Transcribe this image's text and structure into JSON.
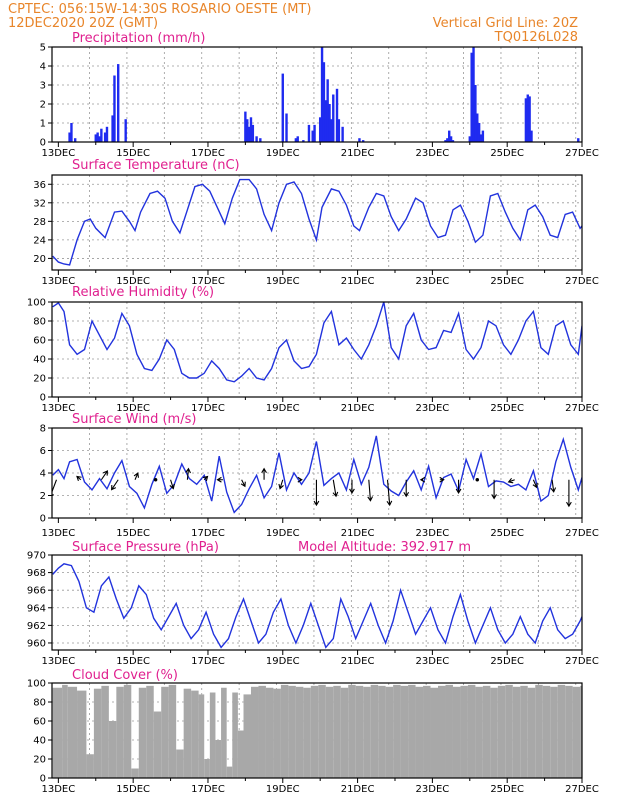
{
  "header": {
    "line1": "CPTEC:   056:15W-14:30S   ROSARIO OESTE (MT)",
    "line2_left": "12DEC2020 20Z (GMT)",
    "line2_right": "Vertical Grid Line: 20Z",
    "line3_right": "TQ0126L028"
  },
  "colors": {
    "header": "#e8852a",
    "title": "#e0208f",
    "series": "#2233dd",
    "bar": "#1f2bf0",
    "cloud": "#a8a8a8",
    "arrow": "#000000"
  },
  "x_tick_labels": [
    "13DEC",
    "15DEC",
    "17DEC",
    "19DEC",
    "21DEC",
    "23DEC",
    "25DEC",
    "27DEC"
  ],
  "chart_data": [
    {
      "type": "bar",
      "title": "Precipitation (mm/h)",
      "x_range": [
        12.83,
        27.0
      ],
      "ylim": [
        0,
        5
      ],
      "yticks": [
        0,
        1,
        2,
        3,
        4,
        5
      ],
      "grid": true,
      "x": [
        13.3,
        13.35,
        13.45,
        14.0,
        14.05,
        14.1,
        14.15,
        14.25,
        14.3,
        14.45,
        14.5,
        14.6,
        14.8,
        18.0,
        18.05,
        18.1,
        18.15,
        18.2,
        18.3,
        18.4,
        19.0,
        19.1,
        19.35,
        19.4,
        19.55,
        19.7,
        19.8,
        19.85,
        20.0,
        20.05,
        20.1,
        20.15,
        20.2,
        20.25,
        20.3,
        20.35,
        20.45,
        20.5,
        20.6,
        21.05,
        21.15,
        23.35,
        23.4,
        23.45,
        23.5,
        23.55,
        24.0,
        24.05,
        24.1,
        24.15,
        24.2,
        24.25,
        24.3,
        24.35,
        25.5,
        25.55,
        25.6,
        25.65,
        26.9
      ],
      "values": [
        0.5,
        1.0,
        0.2,
        0.4,
        0.5,
        0.3,
        0.7,
        0.5,
        0.8,
        1.4,
        3.5,
        4.1,
        1.2,
        1.6,
        1.2,
        0.8,
        1.3,
        0.9,
        0.3,
        0.2,
        3.6,
        1.5,
        0.2,
        0.3,
        0.1,
        0.9,
        0.6,
        0.9,
        1.3,
        5.0,
        4.2,
        2.2,
        3.3,
        2.0,
        1.2,
        2.5,
        2.8,
        1.2,
        0.8,
        0.2,
        0.1,
        0.1,
        0.2,
        0.6,
        0.3,
        0.1,
        0.3,
        4.7,
        5.0,
        3.0,
        1.5,
        1.0,
        0.4,
        0.6,
        2.3,
        2.5,
        2.4,
        0.6,
        0.2
      ]
    },
    {
      "type": "line",
      "title": "Surface Temperature (nC)",
      "x_range": [
        12.83,
        27.0
      ],
      "ylim": [
        17.5,
        38
      ],
      "yticks": [
        20,
        24,
        28,
        32,
        36
      ],
      "grid": true,
      "series": [
        {
          "x": [
            12.85,
            13.0,
            13.15,
            13.3,
            13.5,
            13.7,
            13.85,
            14.0,
            14.25,
            14.5,
            14.7,
            14.9,
            15.05,
            15.2,
            15.45,
            15.65,
            15.85,
            16.05,
            16.25,
            16.45,
            16.65,
            16.85,
            17.05,
            17.25,
            17.45,
            17.65,
            17.85,
            18.1,
            18.3,
            18.5,
            18.7,
            18.9,
            19.1,
            19.3,
            19.5,
            19.7,
            19.9,
            20.05,
            20.3,
            20.5,
            20.7,
            20.9,
            21.05,
            21.3,
            21.5,
            21.7,
            21.9,
            22.1,
            22.3,
            22.55,
            22.75,
            22.95,
            23.15,
            23.35,
            23.55,
            23.75,
            23.95,
            24.15,
            24.35,
            24.55,
            24.75,
            24.95,
            25.15,
            25.35,
            25.55,
            25.75,
            25.95,
            26.15,
            26.35,
            26.55,
            26.75,
            26.95,
            27.0
          ],
          "values": [
            20.5,
            19.2,
            18.8,
            18.6,
            24.0,
            28.0,
            28.5,
            26.5,
            24.5,
            30.0,
            30.2,
            28.0,
            26.0,
            30.0,
            34.0,
            34.5,
            33.0,
            28.0,
            25.5,
            30.5,
            35.5,
            36.0,
            34.5,
            31.0,
            27.5,
            33.0,
            37.0,
            37.0,
            35.0,
            29.5,
            26.0,
            32.0,
            36.0,
            36.5,
            34.0,
            28.5,
            24.0,
            31.0,
            35.0,
            34.5,
            31.5,
            27.0,
            26.0,
            31.0,
            34.0,
            33.5,
            29.0,
            26.0,
            28.5,
            33.0,
            32.0,
            27.0,
            24.5,
            25.0,
            30.5,
            31.5,
            28.0,
            23.5,
            25.0,
            33.5,
            34.0,
            30.0,
            26.5,
            24.0,
            30.5,
            31.5,
            29.0,
            25.0,
            24.5,
            29.5,
            30.0,
            26.5,
            27.0
          ]
        }
      ]
    },
    {
      "type": "line",
      "title": "Relative Humidity (%)",
      "x_range": [
        12.83,
        27.0
      ],
      "ylim": [
        0,
        100
      ],
      "yticks": [
        0,
        20,
        40,
        60,
        80,
        100
      ],
      "grid": true,
      "series": [
        {
          "x": [
            12.85,
            13.0,
            13.15,
            13.3,
            13.5,
            13.7,
            13.9,
            14.1,
            14.3,
            14.5,
            14.7,
            14.9,
            15.1,
            15.3,
            15.5,
            15.7,
            15.9,
            16.1,
            16.3,
            16.5,
            16.7,
            16.9,
            17.1,
            17.3,
            17.5,
            17.7,
            17.9,
            18.1,
            18.3,
            18.5,
            18.7,
            18.9,
            19.1,
            19.3,
            19.5,
            19.7,
            19.9,
            20.1,
            20.3,
            20.5,
            20.7,
            20.9,
            21.1,
            21.3,
            21.5,
            21.7,
            21.9,
            22.1,
            22.3,
            22.5,
            22.7,
            22.9,
            23.1,
            23.3,
            23.5,
            23.7,
            23.9,
            24.1,
            24.3,
            24.5,
            24.7,
            24.9,
            25.1,
            25.3,
            25.5,
            25.7,
            25.9,
            26.1,
            26.3,
            26.5,
            26.7,
            26.9,
            27.0
          ],
          "values": [
            95,
            99,
            90,
            55,
            45,
            50,
            80,
            65,
            50,
            62,
            88,
            75,
            45,
            30,
            28,
            40,
            60,
            50,
            25,
            20,
            20,
            25,
            38,
            30,
            18,
            16,
            22,
            30,
            20,
            18,
            30,
            52,
            60,
            38,
            30,
            32,
            45,
            78,
            90,
            55,
            62,
            50,
            40,
            55,
            75,
            100,
            52,
            40,
            75,
            88,
            60,
            50,
            52,
            70,
            68,
            88,
            50,
            40,
            52,
            80,
            75,
            55,
            45,
            60,
            80,
            90,
            52,
            45,
            75,
            80,
            55,
            45,
            75
          ]
        }
      ]
    },
    {
      "type": "line",
      "title": "Surface Wind (m/s)",
      "x_range": [
        12.83,
        27.0
      ],
      "ylim": [
        0,
        8
      ],
      "yticks": [
        0,
        2,
        4,
        6,
        8
      ],
      "grid": true,
      "series": [
        {
          "x": [
            12.85,
            13.0,
            13.15,
            13.3,
            13.5,
            13.7,
            13.9,
            14.1,
            14.3,
            14.5,
            14.7,
            14.9,
            15.1,
            15.3,
            15.5,
            15.7,
            15.9,
            16.1,
            16.3,
            16.5,
            16.7,
            16.9,
            17.1,
            17.3,
            17.5,
            17.7,
            17.9,
            18.1,
            18.3,
            18.5,
            18.7,
            18.9,
            19.1,
            19.3,
            19.5,
            19.7,
            19.9,
            20.1,
            20.3,
            20.5,
            20.7,
            20.9,
            21.1,
            21.3,
            21.5,
            21.7,
            21.9,
            22.1,
            22.3,
            22.5,
            22.7,
            22.9,
            23.1,
            23.3,
            23.5,
            23.7,
            23.9,
            24.1,
            24.3,
            24.5,
            24.7,
            24.9,
            25.1,
            25.3,
            25.5,
            25.7,
            25.9,
            26.1,
            26.3,
            26.5,
            26.7,
            26.9,
            27.0
          ],
          "values": [
            3.8,
            4.3,
            3.5,
            5.0,
            5.2,
            3.2,
            2.5,
            3.5,
            2.6,
            4.0,
            5.1,
            2.8,
            2.2,
            0.9,
            3.0,
            4.6,
            2.2,
            3.0,
            4.8,
            3.5,
            3.0,
            3.8,
            1.5,
            5.5,
            2.3,
            0.5,
            1.2,
            2.6,
            3.8,
            1.8,
            2.8,
            5.8,
            2.5,
            4.0,
            3.0,
            4.0,
            6.8,
            2.9,
            3.5,
            4.0,
            2.5,
            5.2,
            3.0,
            4.5,
            7.3,
            3.0,
            2.4,
            2.0,
            3.2,
            4.2,
            2.5,
            4.6,
            1.8,
            3.6,
            3.9,
            2.4,
            5.2,
            3.5,
            5.7,
            2.8,
            3.3,
            3.2,
            2.8,
            3.0,
            2.5,
            4.2,
            1.5,
            2.0,
            5.0,
            7.0,
            4.5,
            2.5,
            3.6
          ]
        }
      ],
      "arrows": {
        "x": [
          12.95,
          13.6,
          14.15,
          14.6,
          15.05,
          15.6,
          16.0,
          16.45,
          16.9,
          17.4,
          17.9,
          18.5,
          19.0,
          19.45,
          19.9,
          20.35,
          20.85,
          21.3,
          21.8,
          22.3,
          22.75,
          23.2,
          23.7,
          24.2,
          24.65,
          25.2,
          25.7,
          26.2,
          26.65
        ],
        "dx": [
          -0.6,
          -0.35,
          0.55,
          -0.6,
          0.25,
          0.0,
          0.25,
          0.1,
          0.3,
          -0.5,
          0.3,
          0.0,
          -0.25,
          0.2,
          0.0,
          0.25,
          0.0,
          0.15,
          0.2,
          0.0,
          -0.2,
          0.35,
          0.0,
          0.0,
          0.0,
          -0.55,
          0.3,
          0.15,
          0.0
        ],
        "dy": [
          -1.6,
          0.3,
          0.8,
          -0.9,
          0.6,
          0.0,
          -0.8,
          1.0,
          0.3,
          0.0,
          -0.6,
          1.0,
          -0.8,
          0.0,
          -2.3,
          -1.5,
          -1.2,
          -1.9,
          -2.3,
          -1.5,
          0.0,
          0.0,
          -1.2,
          0.0,
          -1.7,
          -0.2,
          -0.7,
          -1.1,
          -2.4
        ]
      }
    },
    {
      "type": "line",
      "title": "Surface Pressure (hPa)",
      "annotation": "Model Altitude: 392.917  m",
      "x_range": [
        12.83,
        27.0
      ],
      "ylim": [
        959.2,
        970
      ],
      "yticks": [
        960,
        962,
        964,
        966,
        968,
        970
      ],
      "grid": true,
      "series": [
        {
          "x": [
            12.85,
            13.0,
            13.15,
            13.35,
            13.55,
            13.75,
            13.95,
            14.15,
            14.35,
            14.55,
            14.75,
            14.95,
            15.15,
            15.35,
            15.55,
            15.75,
            15.95,
            16.15,
            16.35,
            16.55,
            16.75,
            16.95,
            17.15,
            17.35,
            17.55,
            17.75,
            17.95,
            18.15,
            18.35,
            18.55,
            18.75,
            18.95,
            19.15,
            19.35,
            19.55,
            19.75,
            19.95,
            20.15,
            20.35,
            20.55,
            20.75,
            20.95,
            21.15,
            21.35,
            21.55,
            21.75,
            21.95,
            22.15,
            22.35,
            22.55,
            22.75,
            22.95,
            23.15,
            23.35,
            23.55,
            23.75,
            23.95,
            24.15,
            24.35,
            24.55,
            24.75,
            24.95,
            25.15,
            25.35,
            25.55,
            25.75,
            25.95,
            26.15,
            26.35,
            26.55,
            26.75,
            26.95,
            27.0
          ],
          "values": [
            967.8,
            968.5,
            969.0,
            968.8,
            967.0,
            964.0,
            963.5,
            966.5,
            967.5,
            965.0,
            962.8,
            964.0,
            966.5,
            965.5,
            962.8,
            961.5,
            963.0,
            964.5,
            962.0,
            960.5,
            961.5,
            963.5,
            961.0,
            959.5,
            960.5,
            963.0,
            965.0,
            962.5,
            960.0,
            961.0,
            963.5,
            965.0,
            962.0,
            960.0,
            962.0,
            964.5,
            962.0,
            959.5,
            960.5,
            965.0,
            963.0,
            960.5,
            962.5,
            964.5,
            962.0,
            960.0,
            962.5,
            966.0,
            963.5,
            961.0,
            962.5,
            964.0,
            961.5,
            960.0,
            963.0,
            965.5,
            962.5,
            960.0,
            962.0,
            964.0,
            961.5,
            960.0,
            961.0,
            963.0,
            961.0,
            960.0,
            962.5,
            964.0,
            961.5,
            960.5,
            961.0,
            962.5,
            963.0
          ]
        }
      ]
    },
    {
      "type": "area",
      "title": "Cloud Cover (%)",
      "x_range": [
        12.83,
        27.0
      ],
      "ylim": [
        0,
        100
      ],
      "yticks": [
        0,
        20,
        40,
        60,
        80,
        100
      ],
      "grid": true,
      "x": [
        12.85,
        13.1,
        13.25,
        13.5,
        13.75,
        13.95,
        14.15,
        14.35,
        14.55,
        14.75,
        14.95,
        15.15,
        15.35,
        15.55,
        15.75,
        15.95,
        16.15,
        16.35,
        16.55,
        16.75,
        16.9,
        17.05,
        17.2,
        17.35,
        17.5,
        17.65,
        17.8,
        17.95,
        18.15,
        18.35,
        18.55,
        18.75,
        18.95,
        19.15,
        19.35,
        19.55,
        19.75,
        19.95,
        20.15,
        20.35,
        20.55,
        20.75,
        20.95,
        21.15,
        21.35,
        21.55,
        21.75,
        21.95,
        22.15,
        22.35,
        22.55,
        22.75,
        22.95,
        23.15,
        23.35,
        23.55,
        23.75,
        23.95,
        24.15,
        24.35,
        24.55,
        24.75,
        24.95,
        25.15,
        25.35,
        25.55,
        25.75,
        25.95,
        26.15,
        26.35,
        26.55,
        26.75,
        26.95
      ],
      "values": [
        95,
        98,
        96,
        92,
        25,
        94,
        97,
        60,
        96,
        98,
        10,
        95,
        97,
        70,
        96,
        98,
        30,
        94,
        92,
        88,
        20,
        90,
        40,
        95,
        12,
        90,
        50,
        88,
        96,
        97,
        95,
        94,
        98,
        97,
        96,
        95,
        97,
        98,
        96,
        97,
        95,
        98,
        97,
        96,
        98,
        97,
        96,
        98,
        97,
        98,
        96,
        97,
        95,
        97,
        98,
        96,
        97,
        98,
        96,
        97,
        95,
        97,
        98,
        96,
        97,
        95,
        98,
        97,
        96,
        98,
        97,
        96,
        97
      ]
    }
  ]
}
